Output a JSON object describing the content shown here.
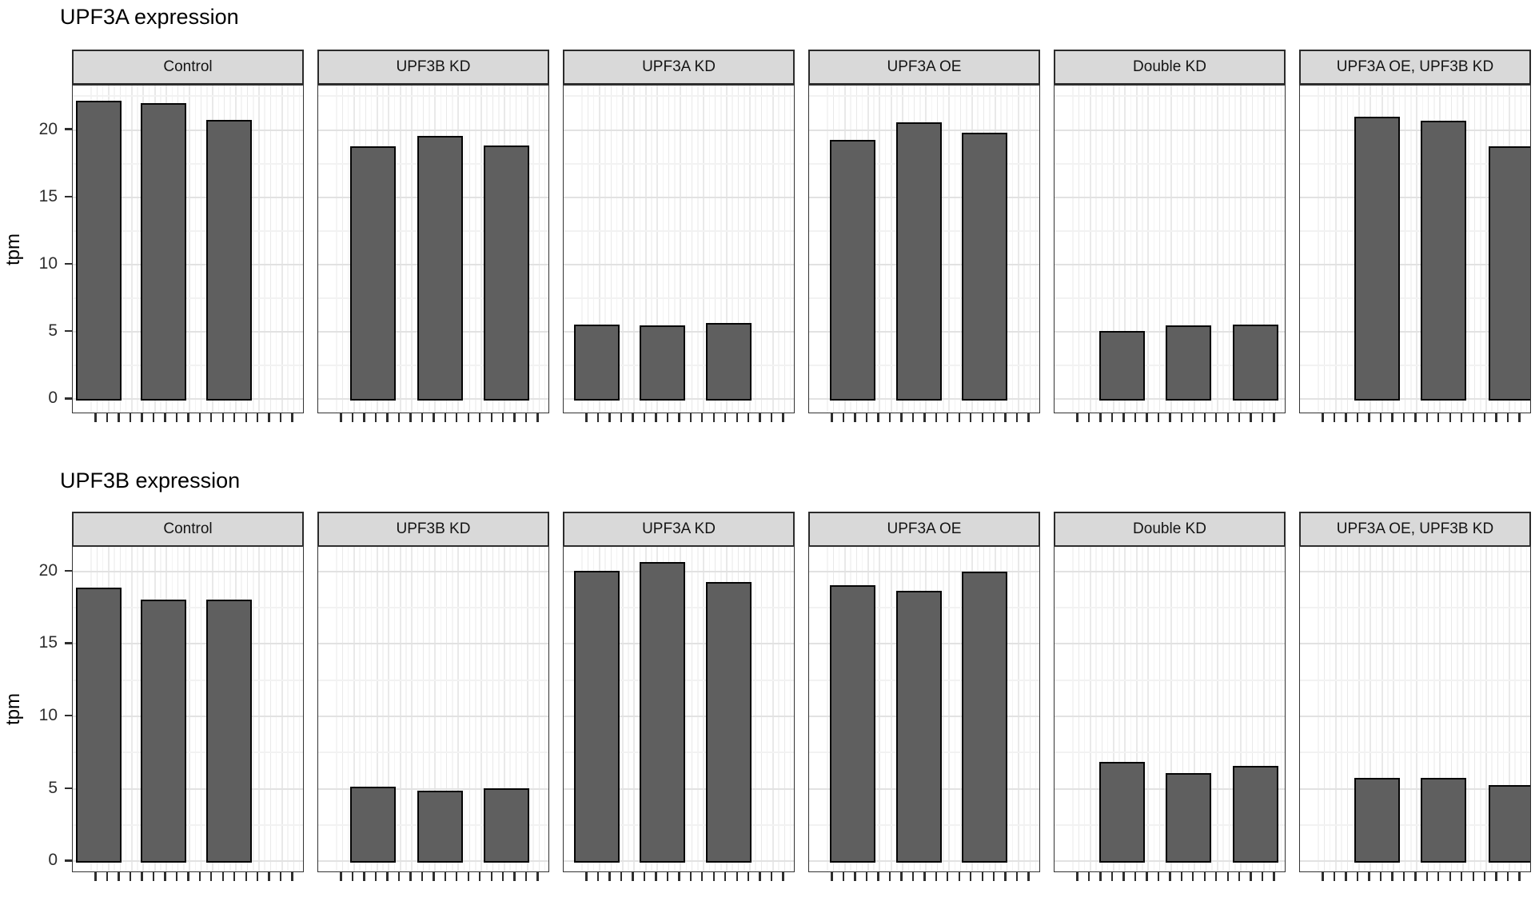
{
  "colors": {
    "bar_fill": "#5f5f5f",
    "bar_border": "#050505",
    "strip_background": "#d9d9d9",
    "strip_border": "#2b2b2b",
    "panel_border": "#333333",
    "grid_major": "#e2e2e2",
    "grid_minor": "#f2f2f2",
    "grid_vertical_major": "#e9e9e9",
    "grid_vertical_minor": "#f4f4f4",
    "axis_text": "#2e2e2e",
    "title_text": "#000000"
  },
  "chart_data": [
    {
      "type": "bar",
      "title": "UPF3A expression",
      "xlabel": "",
      "ylabel": "tpm",
      "yticks": [
        0,
        5,
        10,
        15,
        20
      ],
      "ylim": [
        -1.1,
        23.3
      ],
      "grid": true,
      "legend": "none",
      "bars_per_facet": 3,
      "facets": [
        {
          "label": "Control",
          "bar_values_tpm": [
            22.1,
            21.9,
            20.7
          ]
        },
        {
          "label": "UPF3B KD",
          "bar_values_tpm": [
            18.7,
            19.5,
            18.8
          ]
        },
        {
          "label": "UPF3A KD",
          "bar_values_tpm": [
            5.5,
            5.4,
            5.6
          ]
        },
        {
          "label": "UPF3A OE",
          "bar_values_tpm": [
            19.2,
            20.5,
            19.7
          ]
        },
        {
          "label": "Double KD",
          "bar_values_tpm": [
            5.0,
            5.4,
            5.5
          ]
        },
        {
          "label": "UPF3A OE, UPF3B KD",
          "bar_values_tpm": [
            20.9,
            20.6,
            18.7
          ]
        }
      ]
    },
    {
      "type": "bar",
      "title": "UPF3B expression",
      "xlabel": "",
      "ylabel": "tpm",
      "yticks": [
        0,
        5,
        10,
        15,
        20
      ],
      "ylim": [
        -0.8,
        21.7
      ],
      "grid": true,
      "legend": "none",
      "bars_per_facet": 3,
      "facets": [
        {
          "label": "Control",
          "bar_values_tpm": [
            18.8,
            18.0,
            18.0
          ]
        },
        {
          "label": "UPF3B KD",
          "bar_values_tpm": [
            5.1,
            4.8,
            5.0
          ]
        },
        {
          "label": "UPF3A KD",
          "bar_values_tpm": [
            20.0,
            20.6,
            19.2
          ]
        },
        {
          "label": "UPF3A OE",
          "bar_values_tpm": [
            19.0,
            18.6,
            19.9
          ]
        },
        {
          "label": "Double KD",
          "bar_values_tpm": [
            6.8,
            6.0,
            6.5
          ]
        },
        {
          "label": "UPF3A OE, UPF3B KD",
          "bar_values_tpm": [
            5.7,
            5.7,
            5.2
          ]
        }
      ]
    }
  ]
}
